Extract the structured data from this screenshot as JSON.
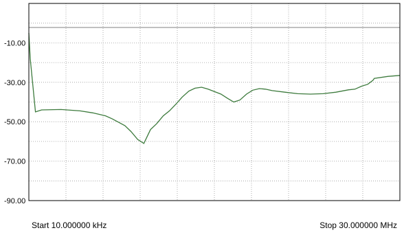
{
  "chart_data": {
    "type": "line",
    "title": "",
    "xlabel": "",
    "ylabel": "",
    "ylim": [
      -90,
      10
    ],
    "y_ticks": [
      {
        "value": -10,
        "label": "-10.00"
      },
      {
        "value": -30,
        "label": "-30.00"
      },
      {
        "value": -50,
        "label": "-50.00"
      },
      {
        "value": -70,
        "label": "-70.00"
      },
      {
        "value": -90,
        "label": "-90.00"
      }
    ],
    "grid": true,
    "x_divisions": 10,
    "y_divisions": 10,
    "x_start_label": "Start 10.000000 kHz",
    "x_stop_label": "Stop 30.000000 MHz",
    "reference_line": {
      "value": -2.2,
      "color": "#808080"
    },
    "series": [
      {
        "color": "#3c7a3c",
        "points": [
          [
            0.0,
            -5
          ],
          [
            0.4,
            -18
          ],
          [
            1.9,
            -45
          ],
          [
            3.7,
            -44
          ],
          [
            9.3,
            -43.8
          ],
          [
            14.8,
            -44.5
          ],
          [
            18.5,
            -45.5
          ],
          [
            22.2,
            -47
          ],
          [
            24.1,
            -48.5
          ],
          [
            27.8,
            -52
          ],
          [
            29.6,
            -55
          ],
          [
            31.5,
            -59
          ],
          [
            33.3,
            -61
          ],
          [
            35.2,
            -54
          ],
          [
            37.0,
            -51
          ],
          [
            38.9,
            -47
          ],
          [
            40.7,
            -44.5
          ],
          [
            42.6,
            -41
          ],
          [
            44.4,
            -37.5
          ],
          [
            46.3,
            -34.5
          ],
          [
            48.1,
            -33
          ],
          [
            50.0,
            -32.5
          ],
          [
            51.9,
            -33.5
          ],
          [
            55.6,
            -36
          ],
          [
            57.4,
            -38
          ],
          [
            59.3,
            -40
          ],
          [
            61.1,
            -39
          ],
          [
            63.0,
            -36
          ],
          [
            64.8,
            -34
          ],
          [
            66.7,
            -33.2
          ],
          [
            68.5,
            -33.5
          ],
          [
            70.4,
            -34.2
          ],
          [
            74.1,
            -35
          ],
          [
            77.8,
            -35.8
          ],
          [
            81.5,
            -36
          ],
          [
            85.2,
            -35.8
          ],
          [
            88.9,
            -35
          ],
          [
            92.6,
            -33.8
          ],
          [
            94.4,
            -33.5
          ],
          [
            96.3,
            -32
          ],
          [
            98.1,
            -31
          ],
          [
            99.6,
            -29
          ],
          [
            100.0,
            -28
          ],
          [
            104.0,
            -27
          ],
          [
            107.4,
            -26.5
          ]
        ]
      }
    ]
  }
}
